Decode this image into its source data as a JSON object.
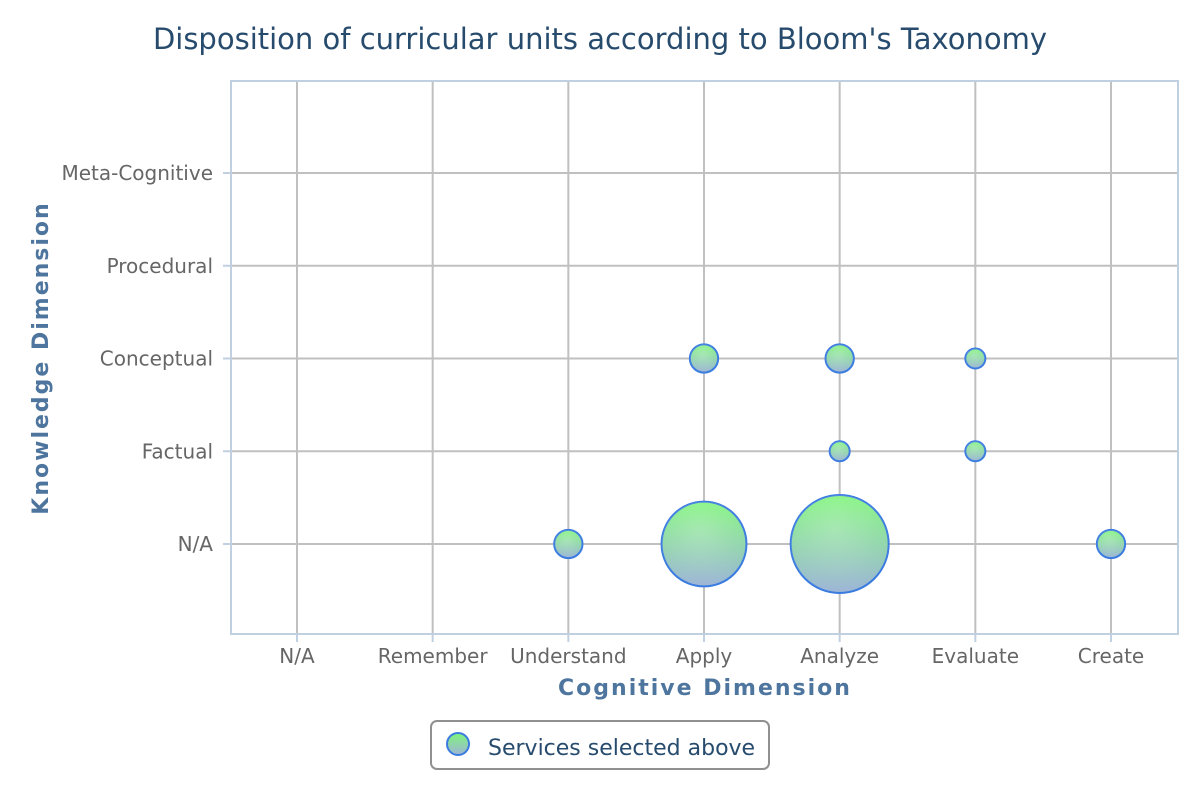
{
  "chart_data": {
    "type": "scatter",
    "title": "Disposition of curricular units according to Bloom's Taxonomy",
    "xlabel": "Cognitive Dimension",
    "ylabel": "Knowledge Dimension",
    "x_categories": [
      "N/A",
      "Remember",
      "Understand",
      "Apply",
      "Analyze",
      "Evaluate",
      "Create"
    ],
    "y_categories": [
      "N/A",
      "Factual",
      "Conceptual",
      "Procedural",
      "Meta-Cognitive"
    ],
    "grid": true,
    "legend_position": "bottom-center",
    "series": [
      {
        "name": "Services selected above",
        "points": [
          {
            "x": "Understand",
            "y": "N/A",
            "size": 2
          },
          {
            "x": "Apply",
            "y": "N/A",
            "size": 18
          },
          {
            "x": "Analyze",
            "y": "N/A",
            "size": 24
          },
          {
            "x": "Create",
            "y": "N/A",
            "size": 2
          },
          {
            "x": "Apply",
            "y": "Conceptual",
            "size": 2
          },
          {
            "x": "Analyze",
            "y": "Conceptual",
            "size": 2
          },
          {
            "x": "Evaluate",
            "y": "Conceptual",
            "size": 1
          },
          {
            "x": "Analyze",
            "y": "Factual",
            "size": 1
          },
          {
            "x": "Evaluate",
            "y": "Factual",
            "size": 1
          }
        ]
      }
    ]
  },
  "colors": {
    "bubble_fill_top": "#7ff57a",
    "bubble_fill_bottom": "#9db4d8",
    "bubble_stroke": "#3a7be0"
  }
}
